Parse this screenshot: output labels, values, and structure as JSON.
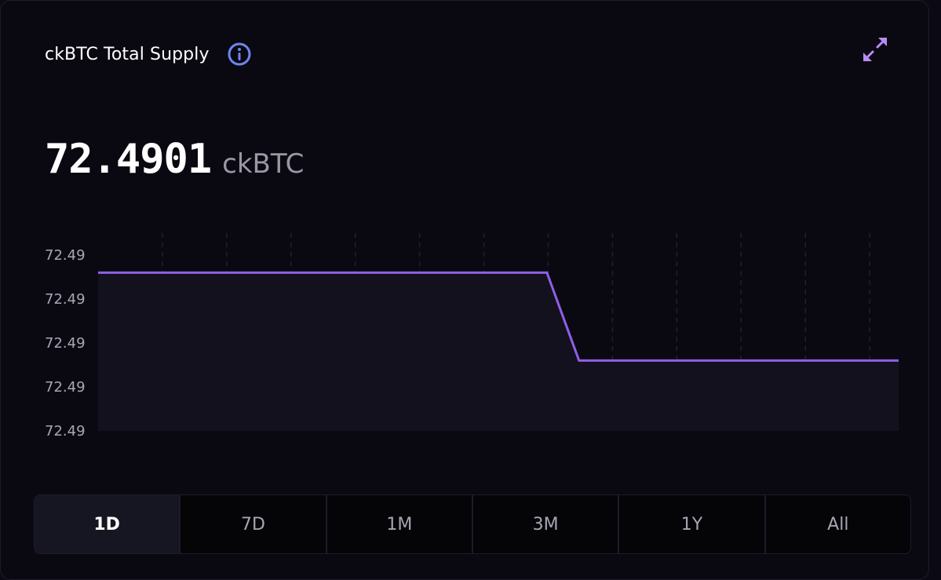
{
  "widget": {
    "title": "ckBTC Total Supply",
    "info_icon": "info-circle-icon",
    "expand_icon": "expand-arrows-icon"
  },
  "summary": {
    "value": "72.4901",
    "unit": "ckBTC"
  },
  "colors": {
    "line": "#8f5fe6",
    "area": "#14111f",
    "accent_icon": "#6d86ee",
    "expand_icon": "#b78cf5"
  },
  "chart_data": {
    "type": "area",
    "title": "",
    "xlabel": "",
    "ylabel": "",
    "y_tick_labels": [
      "72.49",
      "72.49",
      "72.49",
      "72.49",
      "72.49"
    ],
    "ylim": [
      72.4897,
      72.4902
    ],
    "grid": "vertical dashed",
    "series": [
      {
        "values": [
          72.49015,
          72.49015,
          72.49015,
          72.49015,
          72.49015,
          72.49015,
          72.49015,
          72.49015,
          72.4899,
          72.4899,
          72.4899,
          72.4899,
          72.4899,
          72.4899,
          72.4899
        ]
      }
    ],
    "x_positions": [
      0,
      1,
      2,
      3,
      4,
      5,
      6,
      6.98,
      7.48,
      8,
      9,
      10,
      11,
      12,
      12.45
    ]
  },
  "ranges": {
    "items": [
      "1D",
      "7D",
      "1M",
      "3M",
      "1Y",
      "All"
    ],
    "active": "1D"
  }
}
